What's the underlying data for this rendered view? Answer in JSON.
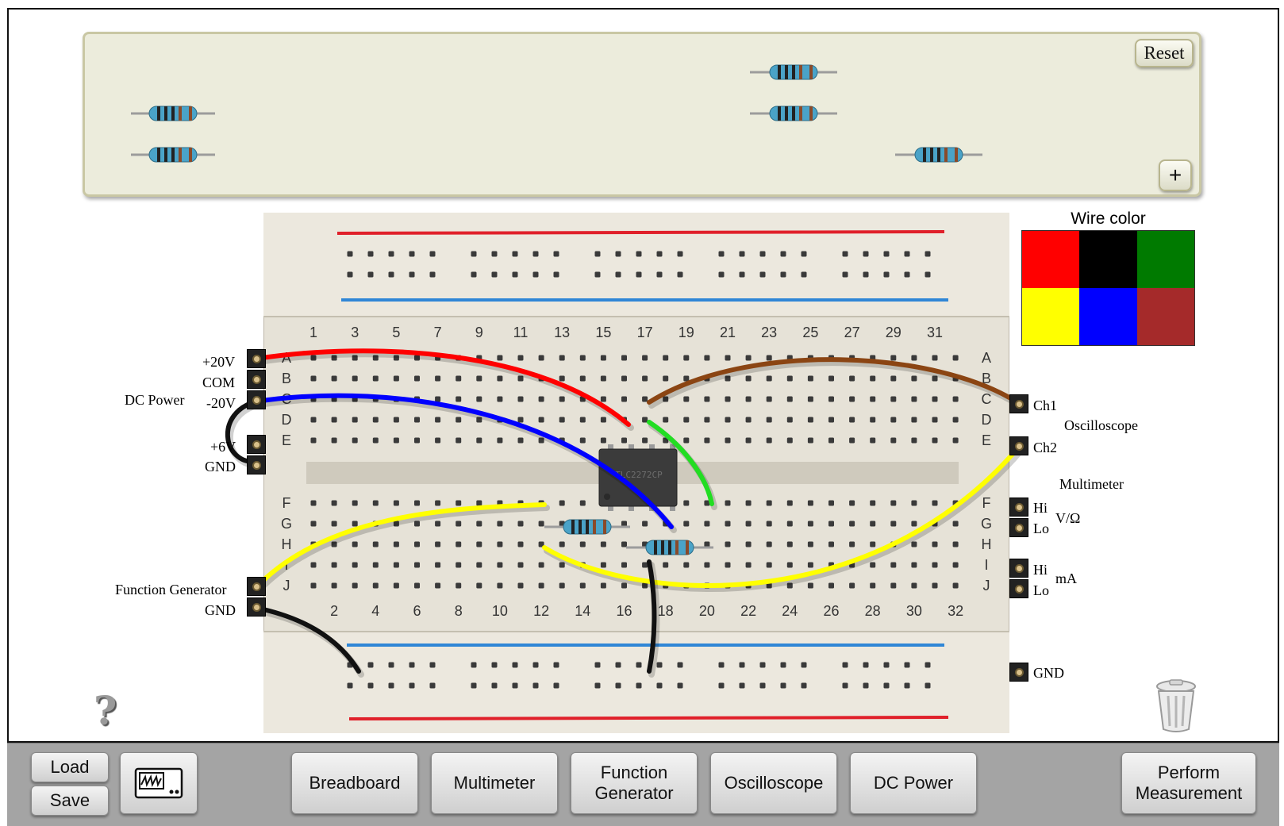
{
  "tray": {
    "reset_label": "Reset",
    "add_label": "+"
  },
  "wire_color": {
    "title": "Wire color",
    "swatches": [
      "#ff0000",
      "#000000",
      "#007a00",
      "#ffff00",
      "#0000ff",
      "#a52a2a"
    ]
  },
  "breadboard": {
    "top_numbers": [
      "1",
      "3",
      "5",
      "7",
      "9",
      "11",
      "13",
      "15",
      "17",
      "19",
      "21",
      "23",
      "25",
      "27",
      "29",
      "31"
    ],
    "bottom_numbers": [
      "2",
      "4",
      "6",
      "8",
      "10",
      "12",
      "14",
      "16",
      "18",
      "20",
      "22",
      "24",
      "26",
      "28",
      "30",
      "32"
    ],
    "row_letters_top": [
      "A",
      "B",
      "C",
      "D",
      "E"
    ],
    "row_letters_bottom": [
      "F",
      "G",
      "H",
      "I",
      "J"
    ],
    "chip_marking": "TLC2272CP"
  },
  "left_labels": {
    "plus20": "+20V",
    "com": "COM",
    "minus20": "-20V",
    "dc_power": "DC Power",
    "plus6": "+6V",
    "gnd": "GND",
    "function_generator": "Function Generator",
    "fg_gnd": "GND"
  },
  "right_labels": {
    "ch1": "Ch1",
    "ch2": "Ch2",
    "oscilloscope": "Oscilloscope",
    "multimeter": "Multimeter",
    "hi1": "Hi",
    "lo1": "Lo",
    "v_ohm": "V/Ω",
    "hi2": "Hi",
    "lo2": "Lo",
    "ma": "mA",
    "gnd": "GND"
  },
  "help_label": "?",
  "toolbar": {
    "load": "Load",
    "save": "Save",
    "breadboard": "Breadboard",
    "multimeter": "Multimeter",
    "function_generator_1": "Function",
    "function_generator_2": "Generator",
    "oscilloscope": "Oscilloscope",
    "dc_power": "DC Power",
    "perform_1": "Perform",
    "perform_2": "Measurement"
  },
  "icons": [
    "question-mark-icon",
    "trash-can-icon",
    "oscilloscope-icon"
  ]
}
